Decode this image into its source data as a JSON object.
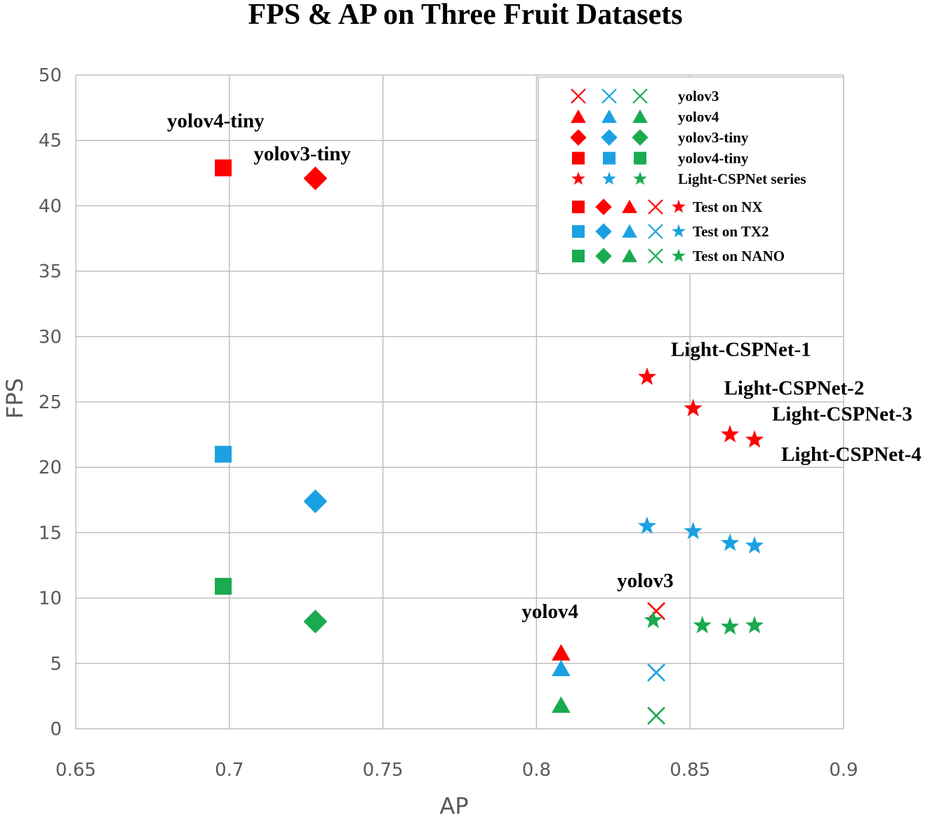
{
  "chart_data": {
    "type": "scatter",
    "title": "FPS & AP on Three Fruit Datasets",
    "xlabel": "AP",
    "ylabel": "FPS",
    "xlim": [
      0.65,
      0.9
    ],
    "ylim": [
      0,
      50
    ],
    "x_ticks": [
      "0.65",
      "0.7",
      "0.75",
      "0.8",
      "0.85",
      "0.9"
    ],
    "y_ticks": [
      "0",
      "5",
      "10",
      "15",
      "20",
      "25",
      "30",
      "35",
      "40",
      "45",
      "50"
    ],
    "grid": true,
    "device_colors": {
      "NX": "#ff0000",
      "TX2": "#1ba1e2",
      "NANO": "#1aaa50"
    },
    "series": [
      {
        "model": "yolov4-tiny",
        "marker": "square",
        "device": "NX",
        "points": [
          [
            0.698,
            42.9
          ]
        ]
      },
      {
        "model": "yolov4-tiny",
        "marker": "square",
        "device": "TX2",
        "points": [
          [
            0.698,
            21.0
          ]
        ]
      },
      {
        "model": "yolov4-tiny",
        "marker": "square",
        "device": "NANO",
        "points": [
          [
            0.698,
            10.9
          ]
        ]
      },
      {
        "model": "yolov3-tiny",
        "marker": "diamond",
        "device": "NX",
        "points": [
          [
            0.728,
            42.1
          ]
        ]
      },
      {
        "model": "yolov3-tiny",
        "marker": "diamond",
        "device": "TX2",
        "points": [
          [
            0.728,
            17.4
          ]
        ]
      },
      {
        "model": "yolov3-tiny",
        "marker": "diamond",
        "device": "NANO",
        "points": [
          [
            0.728,
            8.2
          ]
        ]
      },
      {
        "model": "yolov4",
        "marker": "triangle",
        "device": "NX",
        "points": [
          [
            0.808,
            5.8
          ]
        ]
      },
      {
        "model": "yolov4",
        "marker": "triangle",
        "device": "TX2",
        "points": [
          [
            0.808,
            4.6
          ]
        ]
      },
      {
        "model": "yolov4",
        "marker": "triangle",
        "device": "NANO",
        "points": [
          [
            0.808,
            1.8
          ]
        ]
      },
      {
        "model": "yolov3",
        "marker": "x",
        "device": "NX",
        "points": [
          [
            0.839,
            9.0
          ]
        ]
      },
      {
        "model": "yolov3",
        "marker": "x",
        "device": "TX2",
        "points": [
          [
            0.839,
            4.3
          ]
        ]
      },
      {
        "model": "yolov3",
        "marker": "x",
        "device": "NANO",
        "points": [
          [
            0.839,
            1.0
          ]
        ]
      },
      {
        "model": "Light-CSPNet series",
        "marker": "star",
        "device": "NX",
        "points": [
          [
            0.836,
            26.9
          ],
          [
            0.851,
            24.5
          ],
          [
            0.863,
            22.5
          ],
          [
            0.871,
            22.1
          ]
        ]
      },
      {
        "model": "Light-CSPNet series",
        "marker": "star",
        "device": "TX2",
        "points": [
          [
            0.836,
            15.5
          ],
          [
            0.851,
            15.1
          ],
          [
            0.863,
            14.2
          ],
          [
            0.871,
            14.0
          ]
        ]
      },
      {
        "model": "Light-CSPNet series",
        "marker": "star",
        "device": "NANO",
        "points": [
          [
            0.838,
            8.3
          ],
          [
            0.854,
            7.9
          ],
          [
            0.863,
            7.8
          ],
          [
            0.871,
            7.9
          ]
        ]
      }
    ],
    "annotations": [
      "yolov4-tiny",
      "yolov3-tiny",
      "Light-CSPNet-1",
      "Light-CSPNet-2",
      "Light-CSPNet-3",
      "Light-CSPNet-4",
      "yolov3",
      "yolov4"
    ],
    "legend": {
      "placement": "top-right",
      "models": [
        {
          "label": "yolov3",
          "marker": "x"
        },
        {
          "label": "yolov4",
          "marker": "triangle"
        },
        {
          "label": "yolov3-tiny",
          "marker": "diamond"
        },
        {
          "label": "yolov4-tiny",
          "marker": "square"
        },
        {
          "label": "Light-CSPNet series",
          "marker": "star"
        }
      ],
      "devices": [
        {
          "label": "Test on NX",
          "device": "NX"
        },
        {
          "label": "Test on TX2",
          "device": "TX2"
        },
        {
          "label": "Test on NANO",
          "device": "NANO"
        }
      ]
    }
  }
}
